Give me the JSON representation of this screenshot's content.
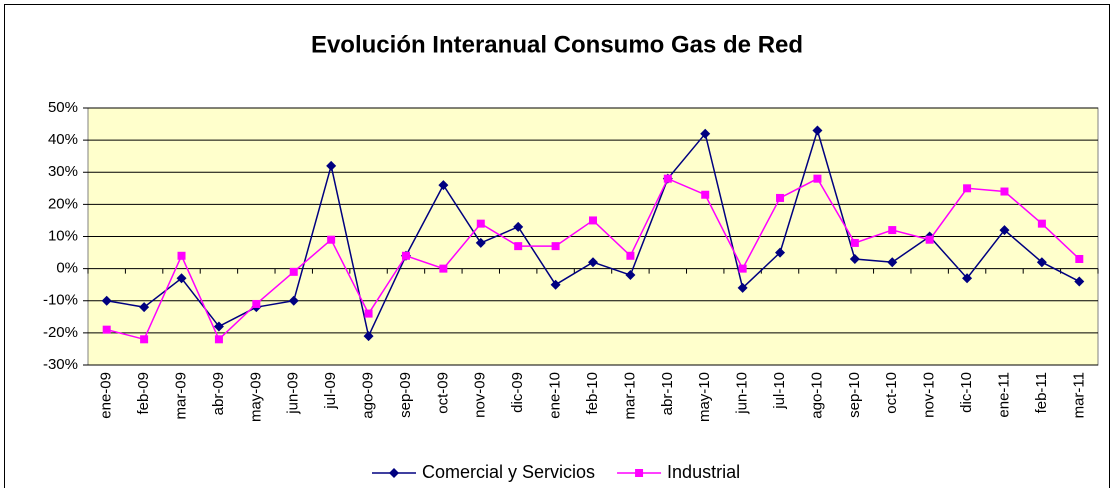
{
  "chart_data": {
    "type": "line",
    "title": "Evolución Interanual Consumo Gas de Red",
    "categories": [
      "ene-09",
      "feb-09",
      "mar-09",
      "abr-09",
      "may-09",
      "jun-09",
      "jul-09",
      "ago-09",
      "sep-09",
      "oct-09",
      "nov-09",
      "dic-09",
      "ene-10",
      "feb-10",
      "mar-10",
      "abr-10",
      "may-10",
      "jun-10",
      "jul-10",
      "ago-10",
      "sep-10",
      "oct-10",
      "nov-10",
      "dic-10",
      "ene-11",
      "feb-11",
      "mar-11"
    ],
    "series": [
      {
        "name": "Comercial y Servicios",
        "color": "#000080",
        "marker": "diamond",
        "values": [
          -10,
          -12,
          -3,
          -18,
          -12,
          -10,
          32,
          -21,
          4,
          26,
          8,
          13,
          -5,
          2,
          -2,
          28,
          42,
          -6,
          5,
          43,
          3,
          2,
          10,
          -3,
          12,
          2,
          -4
        ]
      },
      {
        "name": "Industrial",
        "color": "#FF00FF",
        "marker": "square",
        "values": [
          -19,
          -22,
          4,
          -22,
          -11,
          -1,
          9,
          -14,
          4,
          0,
          14,
          7,
          7,
          15,
          4,
          28,
          23,
          0,
          22,
          28,
          8,
          12,
          9,
          25,
          24,
          14,
          3
        ]
      }
    ],
    "ylim": [
      -30,
      50
    ],
    "yticks": [
      {
        "value": -30,
        "label": "-30%"
      },
      {
        "value": -20,
        "label": "-20%"
      },
      {
        "value": -10,
        "label": "-10%"
      },
      {
        "value": 0,
        "label": "0%"
      },
      {
        "value": 10,
        "label": "10%"
      },
      {
        "value": 20,
        "label": "20%"
      },
      {
        "value": 30,
        "label": "30%"
      },
      {
        "value": 40,
        "label": "40%"
      },
      {
        "value": 50,
        "label": "50%"
      }
    ],
    "grid": true,
    "legend": "bottom",
    "plot_background": "#FFFFCC"
  }
}
